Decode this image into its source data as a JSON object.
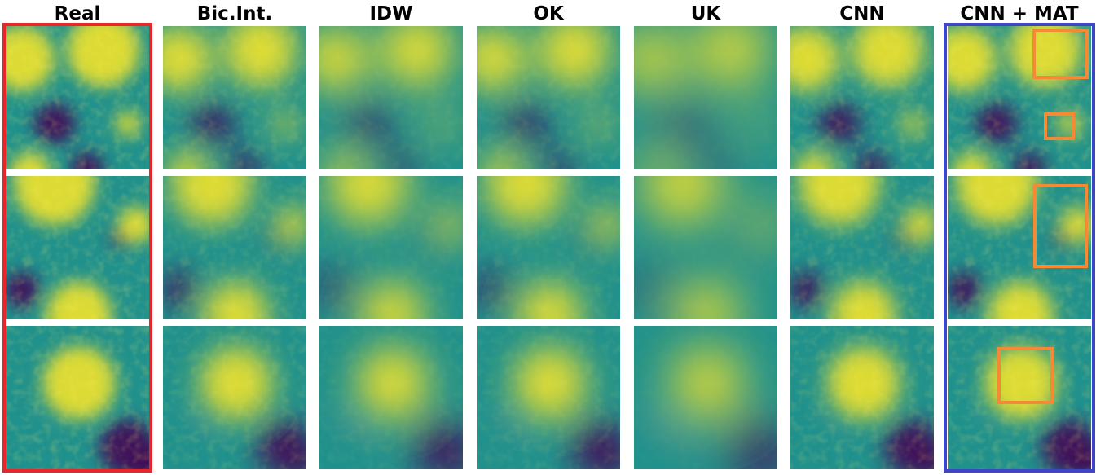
{
  "columns": [
    {
      "id": "real",
      "label": "Real",
      "smooth": 0.0,
      "noise": 1.0
    },
    {
      "id": "bic",
      "label": "Bic.Int.",
      "smooth": 1.2,
      "noise": 0.7
    },
    {
      "id": "idw",
      "label": "IDW",
      "smooth": 2.2,
      "noise": 0.35
    },
    {
      "id": "ok",
      "label": "OK",
      "smooth": 1.8,
      "noise": 0.5
    },
    {
      "id": "uk",
      "label": "UK",
      "smooth": 3.2,
      "noise": 0.15
    },
    {
      "id": "cnn",
      "label": "CNN",
      "smooth": 0.6,
      "noise": 0.85
    },
    {
      "id": "cnnmat",
      "label": "CNN + MAT",
      "smooth": 0.3,
      "noise": 0.95
    }
  ],
  "rows": [
    "row-1",
    "row-2",
    "row-3"
  ],
  "colors": {
    "real_frame": "#e8262a",
    "cnnmat_frame": "#3c46c6",
    "zoom_box": "#f48a35",
    "viridis_low": "#440154",
    "viridis_mid": "#21918c",
    "viridis_high": "#fde725"
  },
  "highlight_boxes": [
    {
      "row": 0,
      "id": "zoom-box-1"
    },
    {
      "row": 0,
      "id": "zoom-box-2"
    },
    {
      "row": 1,
      "id": "zoom-box-3"
    },
    {
      "row": 2,
      "id": "zoom-box-4"
    }
  ]
}
